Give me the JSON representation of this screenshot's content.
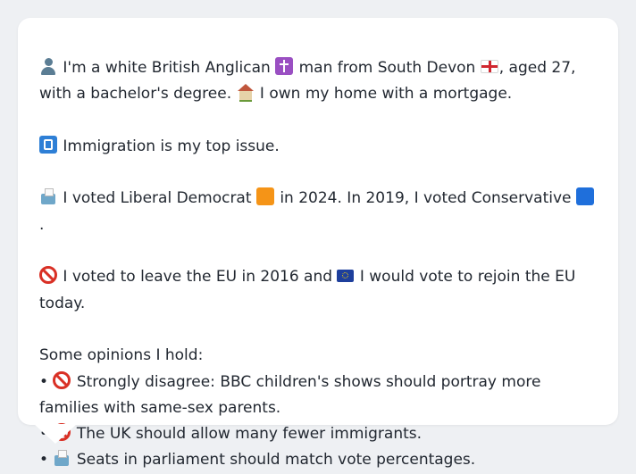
{
  "profile": {
    "identity": {
      "part1": "I'm a white British Anglican",
      "part2": "man from South Devon",
      "part3": ", aged 27, with a bachelor's degree.",
      "part4": "I own my home with a mortgage."
    },
    "issue": "Immigration is my top issue.",
    "votes": {
      "part1": "I voted Liberal Democrat",
      "part2": "in 2024. In 2019, I voted Conservative",
      "part3": "."
    },
    "eu": {
      "part1": "I voted to leave the EU in 2016 and",
      "part2": "I would vote to rejoin the EU today."
    },
    "opinions_heading": "Some opinions I hold:",
    "opinions": [
      {
        "bullet": "•",
        "icon": "prohibited-icon",
        "text": "Strongly disagree: BBC children's shows should portray more families with same-sex parents."
      },
      {
        "bullet": "•",
        "icon": "prohibited-icon",
        "text": "The UK should allow many fewer immigrants."
      },
      {
        "bullet": "•",
        "icon": "ballot-box-icon",
        "text": "Seats in parliament should match vote percentages."
      }
    ]
  },
  "icons": {
    "person": "person-silhouette-icon",
    "cross": "latin-cross-icon",
    "flag_england": "england-flag-icon",
    "house": "house-icon",
    "passport": "passport-control-icon",
    "ballot": "ballot-box-icon",
    "orange_square": "orange-square-icon",
    "blue_square": "blue-square-icon",
    "prohibited": "prohibited-icon",
    "flag_eu": "eu-flag-icon"
  },
  "colors": {
    "background": "#eef0f3",
    "card": "#ffffff",
    "text": "#222831",
    "liberal_democrat": "#f59417",
    "conservative": "#1f6fdb",
    "prohibited": "#d93025"
  }
}
